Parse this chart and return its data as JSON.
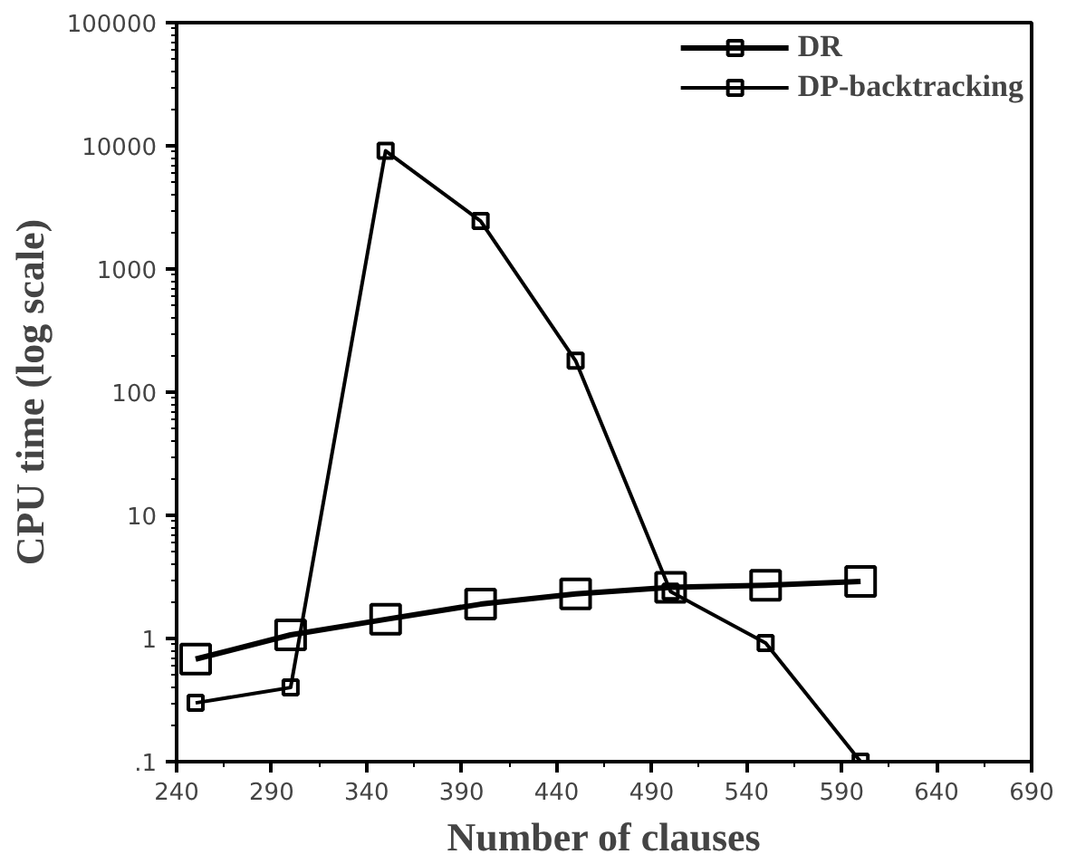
{
  "chart_data": {
    "type": "line",
    "xlabel": "Number of clauses",
    "ylabel": "CPU time (log scale)",
    "log": "y",
    "xlim": [
      240,
      690
    ],
    "ylim": [
      0.1,
      100000
    ],
    "xticks": [
      240,
      290,
      340,
      390,
      440,
      490,
      540,
      590,
      640,
      690
    ],
    "yticks": [
      {
        "value": 0.1,
        "label": ".1"
      },
      1,
      10,
      100,
      1000,
      10000,
      100000
    ],
    "x": [
      250,
      300,
      350,
      400,
      450,
      500,
      550,
      600
    ],
    "series": [
      {
        "name": "DR",
        "color": "#000000",
        "values": [
          0.68,
          1.07,
          1.43,
          1.9,
          2.3,
          2.6,
          2.7,
          2.9
        ]
      },
      {
        "name": "DP-backtracking",
        "color": "#000000",
        "values": [
          0.3,
          0.4,
          9100,
          2450,
          180,
          2.4,
          0.92,
          0.1
        ]
      }
    ],
    "marker": "square",
    "line_style": "solid",
    "legend": "top right",
    "grid": false
  }
}
